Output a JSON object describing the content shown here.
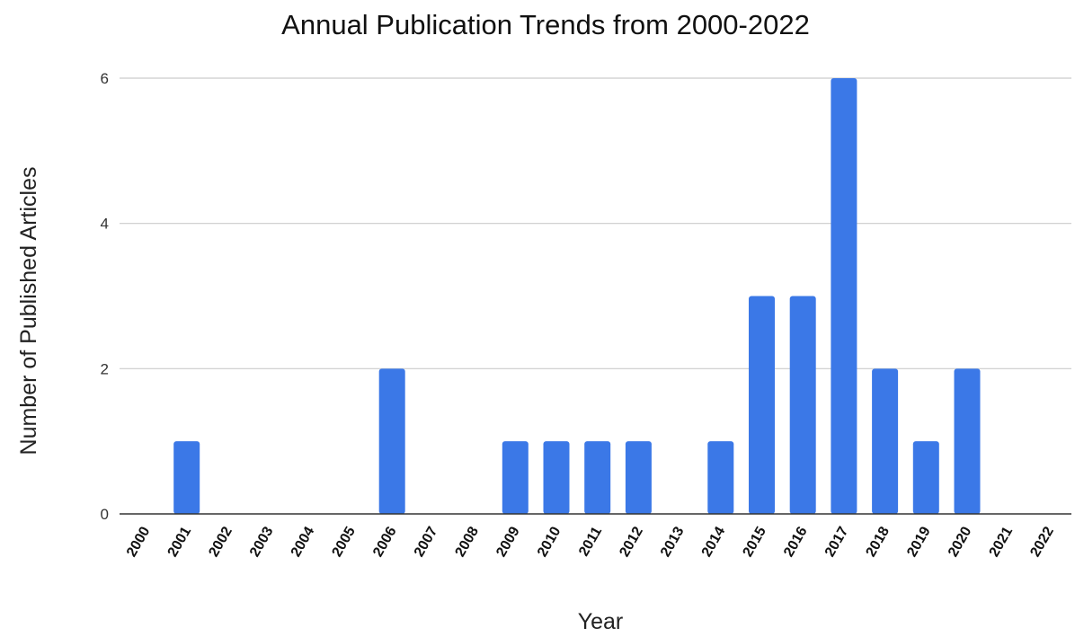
{
  "chart_data": {
    "type": "bar",
    "title": "Annual Publication Trends from 2000-2022",
    "xlabel": "Year",
    "ylabel": "Number of Published Articles",
    "categories": [
      "2000",
      "2001",
      "2002",
      "2003",
      "2004",
      "2005",
      "2006",
      "2007",
      "2008",
      "2009",
      "2010",
      "2011",
      "2012",
      "2013",
      "2014",
      "2015",
      "2016",
      "2017",
      "2018",
      "2019",
      "2020",
      "2021",
      "2022"
    ],
    "values": [
      0,
      1,
      0,
      0,
      0,
      0,
      2,
      0,
      0,
      1,
      1,
      1,
      1,
      0,
      1,
      3,
      3,
      6,
      2,
      1,
      2,
      0,
      0
    ],
    "ylim": [
      0,
      6
    ],
    "yticks": [
      "0",
      "2",
      "4",
      "6"
    ],
    "grid": true,
    "legend": "none",
    "bar_color": "#3b78e7"
  }
}
